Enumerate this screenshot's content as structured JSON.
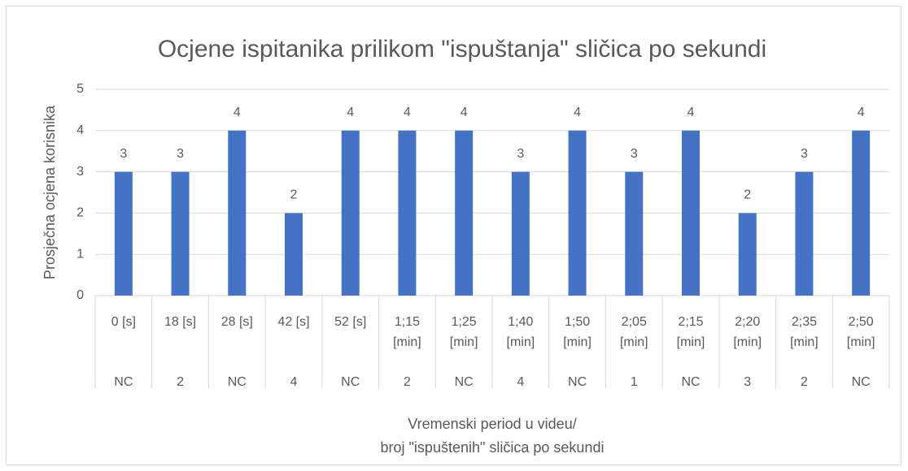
{
  "chart_data": {
    "type": "bar",
    "title": "Ocjene ispitanika prilikom \"ispuštanja\" sličica po sekundi",
    "y_label": "Prosječna ocjena korisnika",
    "x_label": [
      "Vremenski period u videu/",
      "broj \"ispuštenih\" sličica po sekundi"
    ],
    "categories": [
      "0 [s]",
      "18 [s]",
      "28 [s]",
      "42 [s]",
      "52 [s]",
      "1;15 [min]",
      "1;25 [min]",
      "1;40 [min]",
      "1;50 [min]",
      "2;05 [min]",
      "2;15 [min]",
      "2;20 [min]",
      "2;35 [min]",
      "2;50 [min]"
    ],
    "subcategories": [
      "NC",
      "2",
      "NC",
      "4",
      "NC",
      "2",
      "NC",
      "4",
      "NC",
      "1",
      "NC",
      "3",
      "2",
      "NC"
    ],
    "values": [
      3,
      3,
      4,
      2,
      4,
      4,
      4,
      3,
      4,
      3,
      4,
      2,
      3,
      4
    ],
    "color": "#4472c4",
    "ylim": [
      0,
      5
    ],
    "yticks": [
      0,
      1,
      2,
      3,
      4,
      5
    ],
    "grid": true
  }
}
